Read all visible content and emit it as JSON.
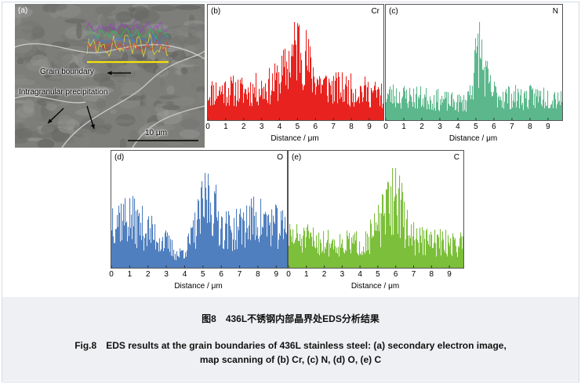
{
  "figure": {
    "sem": {
      "label": "(a)",
      "grain_boundary_label": "Grain boundary",
      "precipitation_label": "Intragranular precipitation",
      "scale_bar_label": "10 μm"
    },
    "caption": {
      "chinese": "图8　436L不锈钢内部晶界处EDS分析结果",
      "english_line1": "Fig.8　EDS results at the grain boundaries of 436L stainless steel: (a) secondary electron image,",
      "english_line2": "map scanning of (b) Cr, (c) N, (d) O, (e) C"
    }
  },
  "colors": {
    "Cr": "#e8231f",
    "N": "#5cb88c",
    "O": "#4f7fbf",
    "C": "#7cbf3a",
    "caption_bg": "#eef0f3",
    "sem_bg": "#7d7d7a"
  },
  "chart_data": [
    {
      "type": "bar",
      "panel": "(b)",
      "element": "Cr",
      "xlabel": "Distance / μm",
      "x_ticks": [
        "0",
        "1",
        "2",
        "3",
        "4",
        "5",
        "6",
        "7",
        "8",
        "9"
      ],
      "xlim": [
        0,
        9.7
      ],
      "profile_points": [
        [
          0,
          0.35
        ],
        [
          1,
          0.38
        ],
        [
          2,
          0.36
        ],
        [
          3,
          0.4
        ],
        [
          3.6,
          0.45
        ],
        [
          4.2,
          0.6
        ],
        [
          4.6,
          0.8
        ],
        [
          5.0,
          0.97
        ],
        [
          5.3,
          0.85
        ],
        [
          5.7,
          0.6
        ],
        [
          6.3,
          0.45
        ],
        [
          7,
          0.4
        ],
        [
          8,
          0.38
        ],
        [
          9,
          0.35
        ],
        [
          9.7,
          0.3
        ]
      ]
    },
    {
      "type": "bar",
      "panel": "(c)",
      "element": "N",
      "xlabel": "Distance / μm",
      "x_ticks": [
        "0",
        "1",
        "2",
        "3",
        "4",
        "5",
        "6",
        "7",
        "8",
        "9"
      ],
      "xlim": [
        0,
        9.7
      ],
      "profile_points": [
        [
          0,
          0.32
        ],
        [
          1,
          0.3
        ],
        [
          2,
          0.28
        ],
        [
          3,
          0.25
        ],
        [
          3.8,
          0.22
        ],
        [
          4.4,
          0.22
        ],
        [
          4.8,
          0.55
        ],
        [
          5.1,
          0.95
        ],
        [
          5.4,
          0.6
        ],
        [
          5.8,
          0.35
        ],
        [
          6.5,
          0.3
        ],
        [
          7.5,
          0.28
        ],
        [
          8.5,
          0.3
        ],
        [
          9.7,
          0.3
        ]
      ]
    },
    {
      "type": "bar",
      "panel": "(d)",
      "element": "O",
      "xlabel": "Distance / μm",
      "x_ticks": [
        "0",
        "1",
        "2",
        "3",
        "4",
        "5",
        "6",
        "7",
        "8",
        "9"
      ],
      "xlim": [
        0,
        9.5
      ],
      "profile_points": [
        [
          0,
          0.65
        ],
        [
          1,
          0.6
        ],
        [
          2,
          0.45
        ],
        [
          3,
          0.3
        ],
        [
          3.6,
          0.15
        ],
        [
          4.2,
          0.3
        ],
        [
          4.8,
          0.65
        ],
        [
          5.2,
          0.9
        ],
        [
          5.6,
          0.7
        ],
        [
          6,
          0.5
        ],
        [
          6.6,
          0.45
        ],
        [
          7.2,
          0.55
        ],
        [
          7.8,
          0.6
        ],
        [
          8.5,
          0.55
        ],
        [
          9.5,
          0.45
        ]
      ]
    },
    {
      "type": "bar",
      "panel": "(e)",
      "element": "C",
      "xlabel": "Distance / μm",
      "x_ticks": [
        "0",
        "1",
        "2",
        "3",
        "4",
        "5",
        "6",
        "7",
        "8",
        "9"
      ],
      "xlim": [
        0,
        9.7
      ],
      "profile_points": [
        [
          0,
          0.38
        ],
        [
          1,
          0.35
        ],
        [
          2,
          0.32
        ],
        [
          3,
          0.3
        ],
        [
          4,
          0.3
        ],
        [
          4.6,
          0.4
        ],
        [
          5.2,
          0.6
        ],
        [
          5.7,
          0.85
        ],
        [
          6.0,
          0.95
        ],
        [
          6.4,
          0.55
        ],
        [
          7,
          0.35
        ],
        [
          8,
          0.32
        ],
        [
          9,
          0.3
        ],
        [
          9.7,
          0.3
        ]
      ]
    }
  ]
}
